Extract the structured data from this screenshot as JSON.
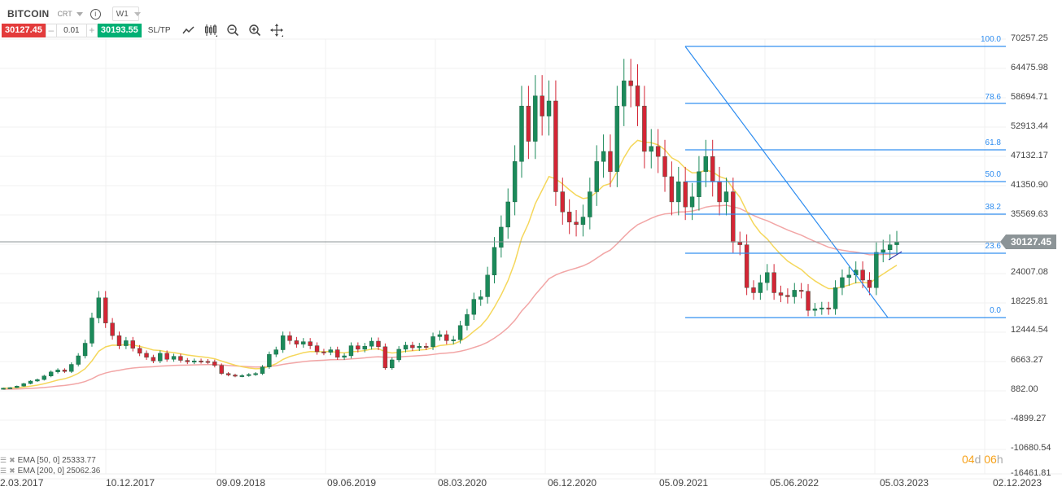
{
  "header": {
    "symbol": "BITCOIN",
    "type": "CRT",
    "info_icon": "i",
    "timeframe": "W1"
  },
  "trade": {
    "sell_price": "30127.45",
    "minus": "–",
    "quantity": "0.01",
    "plus": "+",
    "buy_price": "30193.55",
    "sltp_label": "SL/TP",
    "tools": [
      "line-chart-icon",
      "candlestick-icon",
      "zoom-out-icon",
      "zoom-in-icon",
      "crosshair-icon"
    ]
  },
  "colors": {
    "sell": "#e33b3b",
    "buy": "#00b074",
    "bull": "#1b8a5a",
    "bear": "#d42535",
    "fib": "#2d8cf0",
    "ema50": "#f5d75b",
    "ema200": "#f2a6a6",
    "price_line": "#8c9497",
    "countdown": "#f7a21b"
  },
  "current_price": "30127.45",
  "countdown": {
    "d_num": "04",
    "d_unit": "d",
    "h_num": " 06",
    "h_unit": "h"
  },
  "legend": [
    {
      "label": "EMA [50, 0] 25333.77"
    },
    {
      "label": "EMA [200, 0] 25062.36"
    }
  ],
  "chart_data": {
    "type": "candlestick",
    "title": "BITCOIN CRT W1",
    "yaxis_ticks": [
      "70257.25",
      "64475.98",
      "58694.71",
      "52913.44",
      "47132.17",
      "41350.90",
      "35569.63",
      "30127.45",
      "24007.08",
      "18225.81",
      "12444.54",
      "6663.27",
      "882.00",
      "-4899.27",
      "-10680.54",
      "-16461.81"
    ],
    "xaxis_ticks": [
      "2.03.2017",
      "10.12.2017",
      "09.09.2018",
      "09.06.2019",
      "08.03.2020",
      "06.12.2020",
      "05.09.2021",
      "05.06.2022",
      "05.03.2023",
      "02.12.2023"
    ],
    "fibonacci": {
      "levels": [
        {
          "label": "100.0",
          "value": 69000
        },
        {
          "label": "78.6",
          "value": 58300
        },
        {
          "label": "61.8",
          "value": 49900
        },
        {
          "label": "50.0",
          "value": 44000
        },
        {
          "label": "38.2",
          "value": 38100
        },
        {
          "label": "23.6",
          "value": 30800
        },
        {
          "label": "0.0",
          "value": 15500
        }
      ]
    },
    "indicators": [
      {
        "name": "EMA [50, 0]",
        "value": 25333.77
      },
      {
        "name": "EMA [200, 0]",
        "value": 25062.36
      }
    ],
    "last_price": 30127.45,
    "ylim": [
      -16461.81,
      72000
    ],
    "closes_approx": [
      1100,
      1200,
      1500,
      2000,
      2500,
      2800,
      3500,
      4300,
      4700,
      4400,
      5800,
      7500,
      10000,
      15000,
      19000,
      14000,
      11500,
      9500,
      10500,
      9000,
      8000,
      7200,
      6500,
      8000,
      6800,
      7400,
      6600,
      6300,
      6500,
      6400,
      6300,
      5600,
      4000,
      3700,
      3500,
      3600,
      3800,
      4000,
      5300,
      7800,
      8700,
      11500,
      10500,
      9800,
      10300,
      9500,
      8300,
      8200,
      8700,
      7200,
      7500,
      9500,
      8800,
      9400,
      10400,
      9300,
      5100,
      6700,
      8800,
      9600,
      9100,
      9400,
      9300,
      11300,
      11700,
      10500,
      10700,
      13500,
      15700,
      18700,
      19200,
      23500,
      29000,
      33000,
      38000,
      46000,
      57000,
      50000,
      59000,
      55000,
      58000,
      40000,
      36000,
      34000,
      33500,
      35000,
      40000,
      46000,
      48000,
      44000,
      57000,
      62000,
      61000,
      57000,
      48000,
      49000,
      47000,
      43000,
      38000,
      42000,
      37000,
      39000,
      44000,
      47000,
      42000,
      38000,
      40000,
      30000,
      29500,
      21000,
      20000,
      22000,
      24000,
      20000,
      19500,
      19200,
      20500,
      20300,
      16500,
      16800,
      17000,
      16800,
      21000,
      23000,
      23500,
      24500,
      22500,
      21000,
      28000,
      28500,
      29500,
      30127
    ]
  }
}
